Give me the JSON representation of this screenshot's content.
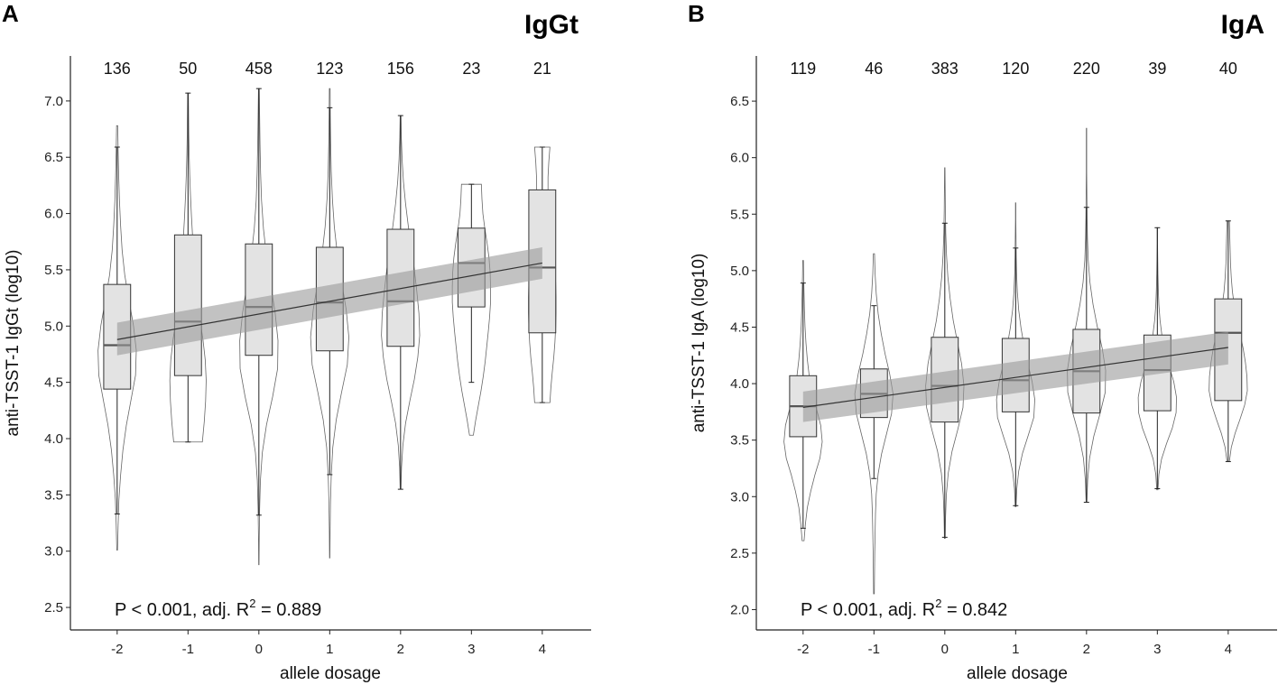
{
  "chart_data": [
    {
      "type": "violin-box",
      "panel_label": "A",
      "title": "IgGt",
      "xlabel": "allele dosage",
      "ylabel": "anti-TSST-1 IgGt (log10)",
      "categories": [
        "-2",
        "-1",
        "0",
        "1",
        "2",
        "3",
        "4"
      ],
      "counts": [
        "136",
        "50",
        "458",
        "123",
        "156",
        "23",
        "21"
      ],
      "ylim": [
        2.3,
        7.4
      ],
      "yticks": [
        "2.5",
        "3.0",
        "3.5",
        "4.0",
        "4.5",
        "5.0",
        "5.5",
        "6.0",
        "6.5",
        "7.0"
      ],
      "boxes": [
        {
          "min": 3.33,
          "q1": 4.44,
          "median": 4.83,
          "q3": 5.37,
          "max": 6.59
        },
        {
          "min": 3.97,
          "q1": 4.56,
          "median": 5.04,
          "q3": 5.81,
          "max": 7.07
        },
        {
          "min": 3.32,
          "q1": 4.74,
          "median": 5.17,
          "q3": 5.73,
          "max": 7.11
        },
        {
          "min": 3.68,
          "q1": 4.78,
          "median": 5.21,
          "q3": 5.7,
          "max": 6.94
        },
        {
          "min": 3.55,
          "q1": 4.82,
          "median": 5.22,
          "q3": 5.86,
          "max": 6.87
        },
        {
          "min": 4.5,
          "q1": 5.17,
          "median": 5.56,
          "q3": 5.87,
          "max": 6.26
        },
        {
          "min": 4.32,
          "q1": 4.94,
          "median": 5.52,
          "q3": 6.21,
          "max": 6.59
        }
      ],
      "violins": [
        {
          "min": 3.01,
          "max": 6.78,
          "widths": [
            0.02,
            0.05,
            0.09,
            0.18,
            0.3,
            0.48,
            0.72,
            0.96,
            1.0,
            0.85,
            0.62,
            0.4,
            0.26,
            0.18,
            0.12,
            0.08,
            0.05,
            0.03
          ]
        },
        {
          "min": 3.97,
          "max": 7.07,
          "widths": [
            0.75,
            0.85,
            0.92,
            0.95,
            0.9,
            0.78,
            0.62,
            0.48,
            0.38,
            0.3,
            0.24,
            0.18,
            0.13,
            0.09,
            0.06,
            0.04,
            0.03,
            0.02
          ]
        },
        {
          "min": 2.88,
          "max": 7.11,
          "widths": [
            0.01,
            0.02,
            0.04,
            0.08,
            0.18,
            0.4,
            0.72,
            0.98,
            1.0,
            0.85,
            0.62,
            0.4,
            0.24,
            0.14,
            0.09,
            0.06,
            0.04,
            0.02
          ]
        },
        {
          "min": 2.94,
          "max": 7.11,
          "widths": [
            0.01,
            0.02,
            0.04,
            0.08,
            0.16,
            0.34,
            0.62,
            0.92,
            1.0,
            0.86,
            0.62,
            0.4,
            0.24,
            0.14,
            0.08,
            0.05,
            0.03,
            0.02
          ]
        },
        {
          "min": 3.55,
          "max": 6.87,
          "widths": [
            0.02,
            0.05,
            0.12,
            0.26,
            0.48,
            0.72,
            0.9,
            1.0,
            0.96,
            0.85,
            0.72,
            0.56,
            0.4,
            0.26,
            0.15,
            0.08,
            0.04,
            0.02
          ]
        },
        {
          "min": 4.03,
          "max": 6.26,
          "widths": [
            0.1,
            0.22,
            0.36,
            0.5,
            0.62,
            0.72,
            0.8,
            0.88,
            0.95,
            1.0,
            1.0,
            0.98,
            0.92,
            0.82,
            0.7,
            0.6,
            0.55,
            0.52
          ]
        },
        {
          "min": 4.32,
          "max": 6.59,
          "widths": [
            0.4,
            0.45,
            0.52,
            0.6,
            0.66,
            0.7,
            0.72,
            0.72,
            0.7,
            0.66,
            0.6,
            0.52,
            0.42,
            0.34,
            0.3,
            0.3,
            0.34,
            0.4
          ]
        }
      ],
      "regression": {
        "x": [
          -2,
          4
        ],
        "y": [
          4.88,
          5.56
        ],
        "ci_lo": [
          4.74,
          5.42
        ],
        "ci_hi": [
          5.03,
          5.7
        ]
      },
      "annotation": {
        "prefix": "P < 0.001, adj. R",
        "sup": "2",
        "suffix": " = 0.889"
      }
    },
    {
      "type": "violin-box",
      "panel_label": "B",
      "title": "IgA",
      "xlabel": "allele dosage",
      "ylabel": "anti-TSST-1 IgA (log10)",
      "categories": [
        "-2",
        "-1",
        "0",
        "1",
        "2",
        "3",
        "4"
      ],
      "counts": [
        "119",
        "46",
        "383",
        "120",
        "220",
        "39",
        "40"
      ],
      "ylim": [
        1.82,
        6.9
      ],
      "yticks": [
        "2.0",
        "2.5",
        "3.0",
        "3.5",
        "4.0",
        "4.5",
        "5.0",
        "5.5",
        "6.0",
        "6.5"
      ],
      "boxes": [
        {
          "min": 2.72,
          "q1": 3.53,
          "median": 3.8,
          "q3": 4.07,
          "max": 4.89
        },
        {
          "min": 3.16,
          "q1": 3.7,
          "median": 3.91,
          "q3": 4.13,
          "max": 4.69
        },
        {
          "min": 2.64,
          "q1": 3.66,
          "median": 3.98,
          "q3": 4.41,
          "max": 5.42
        },
        {
          "min": 2.92,
          "q1": 3.75,
          "median": 4.03,
          "q3": 4.4,
          "max": 5.2
        },
        {
          "min": 2.95,
          "q1": 3.74,
          "median": 4.11,
          "q3": 4.48,
          "max": 5.56
        },
        {
          "min": 3.07,
          "q1": 3.76,
          "median": 4.12,
          "q3": 4.43,
          "max": 5.38
        },
        {
          "min": 3.31,
          "q1": 3.85,
          "median": 4.45,
          "q3": 4.75,
          "max": 5.44
        }
      ],
      "violins": [
        {
          "min": 2.61,
          "max": 5.09,
          "widths": [
            0.05,
            0.12,
            0.22,
            0.4,
            0.62,
            0.88,
            1.0,
            0.92,
            0.7,
            0.48,
            0.32,
            0.22,
            0.15,
            0.1,
            0.07,
            0.05,
            0.03,
            0.02
          ]
        },
        {
          "min": 2.14,
          "max": 5.15,
          "widths": [
            0.02,
            0.03,
            0.04,
            0.06,
            0.08,
            0.12,
            0.22,
            0.4,
            0.66,
            0.92,
            1.0,
            0.82,
            0.58,
            0.38,
            0.22,
            0.12,
            0.06,
            0.03
          ]
        },
        {
          "min": 2.63,
          "max": 5.91,
          "widths": [
            0.02,
            0.04,
            0.08,
            0.18,
            0.38,
            0.68,
            0.95,
            1.0,
            0.88,
            0.66,
            0.44,
            0.28,
            0.16,
            0.09,
            0.05,
            0.03,
            0.02,
            0.01
          ]
        },
        {
          "min": 2.91,
          "max": 5.6,
          "widths": [
            0.02,
            0.06,
            0.16,
            0.36,
            0.66,
            0.95,
            1.0,
            0.86,
            0.64,
            0.44,
            0.28,
            0.16,
            0.09,
            0.05,
            0.03,
            0.02,
            0.01,
            0.01
          ]
        },
        {
          "min": 2.95,
          "max": 6.26,
          "widths": [
            0.02,
            0.06,
            0.16,
            0.38,
            0.7,
            0.98,
            1.0,
            0.82,
            0.56,
            0.34,
            0.18,
            0.09,
            0.05,
            0.03,
            0.02,
            0.01,
            0.01,
            0.01
          ]
        },
        {
          "min": 3.06,
          "max": 5.38,
          "widths": [
            0.03,
            0.08,
            0.22,
            0.48,
            0.78,
            0.98,
            1.0,
            0.86,
            0.62,
            0.4,
            0.24,
            0.14,
            0.08,
            0.05,
            0.03,
            0.02,
            0.01,
            0.01
          ]
        },
        {
          "min": 3.31,
          "max": 5.44,
          "widths": [
            0.06,
            0.16,
            0.36,
            0.62,
            0.86,
            1.0,
            0.98,
            0.9,
            0.78,
            0.62,
            0.46,
            0.32,
            0.22,
            0.16,
            0.12,
            0.1,
            0.08,
            0.06
          ]
        }
      ],
      "regression": {
        "x": [
          -2,
          4
        ],
        "y": [
          3.79,
          4.32
        ],
        "ci_lo": [
          3.66,
          4.17
        ],
        "ci_hi": [
          3.93,
          4.46
        ]
      },
      "annotation": {
        "prefix": "P < 0.001, adj. R",
        "sup": "2",
        "suffix": " = 0.842"
      }
    }
  ]
}
